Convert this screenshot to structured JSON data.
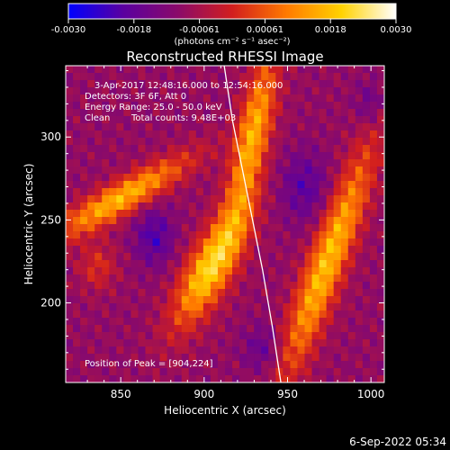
{
  "chart_data": {
    "type": "heatmap",
    "title": "Reconstructed RHESSI Image",
    "xlabel": "Heliocentric X (arcsec)",
    "ylabel": "Heliocentric Y (arcsec)",
    "xlim": [
      817,
      1008
    ],
    "ylim": [
      152,
      343
    ],
    "x_ticks": [
      850,
      900,
      950,
      1000
    ],
    "y_ticks": [
      200,
      250,
      300
    ],
    "colorbar": {
      "label": "(photons cm⁻² s⁻¹ asec⁻²)",
      "range": [
        -0.003,
        0.003
      ],
      "tick_labels": [
        "-0.0030",
        "-0.0018",
        "-0.00061",
        "0.00061",
        "0.0018",
        "0.0030"
      ],
      "colormap": [
        "#0000ff",
        "#5a00a0",
        "#8a0a6a",
        "#d21e1e",
        "#ff7a00",
        "#ffd200",
        "#ffffff"
      ]
    },
    "annotations": [
      "3-Apr-2017 12:48:16.000 to 12:54:16.000",
      "Detectors: 3F 6F, Att 0",
      "Energy Range: 25.0 - 50.0 keV",
      "Clean",
      "Total counts: 9.48E+03",
      "Position of Peak = [904,224]"
    ],
    "peak": [
      904,
      224
    ],
    "limb_curve": {
      "x": [
        912,
        917,
        923,
        929,
        935,
        941,
        946
      ],
      "y": [
        343,
        310,
        280,
        250,
        220,
        185,
        152
      ]
    },
    "sources": [
      {
        "x0": 850,
        "y0": 263,
        "sx": 7,
        "sy": 33,
        "theta_deg": 60,
        "amp": 0.0026
      },
      {
        "x0": 904,
        "y0": 222,
        "sx": 9,
        "sy": 28,
        "theta_deg": 28,
        "amp": 0.003
      },
      {
        "x0": 929,
        "y0": 300,
        "sx": 7,
        "sy": 38,
        "theta_deg": 12,
        "amp": 0.0025
      },
      {
        "x0": 974,
        "y0": 225,
        "sx": 8,
        "sy": 52,
        "theta_deg": 20,
        "amp": 0.0027
      },
      {
        "x0": 836,
        "y0": 222,
        "sx": 8,
        "sy": 10,
        "theta_deg": 0,
        "amp": 0.001
      },
      {
        "x0": 1000,
        "y0": 320,
        "sx": 6,
        "sy": 10,
        "theta_deg": 0,
        "amp": -0.0008
      },
      {
        "x0": 870,
        "y0": 240,
        "sx": 8,
        "sy": 12,
        "theta_deg": 0,
        "amp": -0.0012
      },
      {
        "x0": 960,
        "y0": 270,
        "sx": 10,
        "sy": 15,
        "theta_deg": 0,
        "amp": -0.001
      },
      {
        "x0": 935,
        "y0": 172,
        "sx": 8,
        "sy": 10,
        "theta_deg": 0,
        "amp": -0.0008
      }
    ]
  },
  "footer": {
    "timestamp": "6-Sep-2022 05:34"
  }
}
